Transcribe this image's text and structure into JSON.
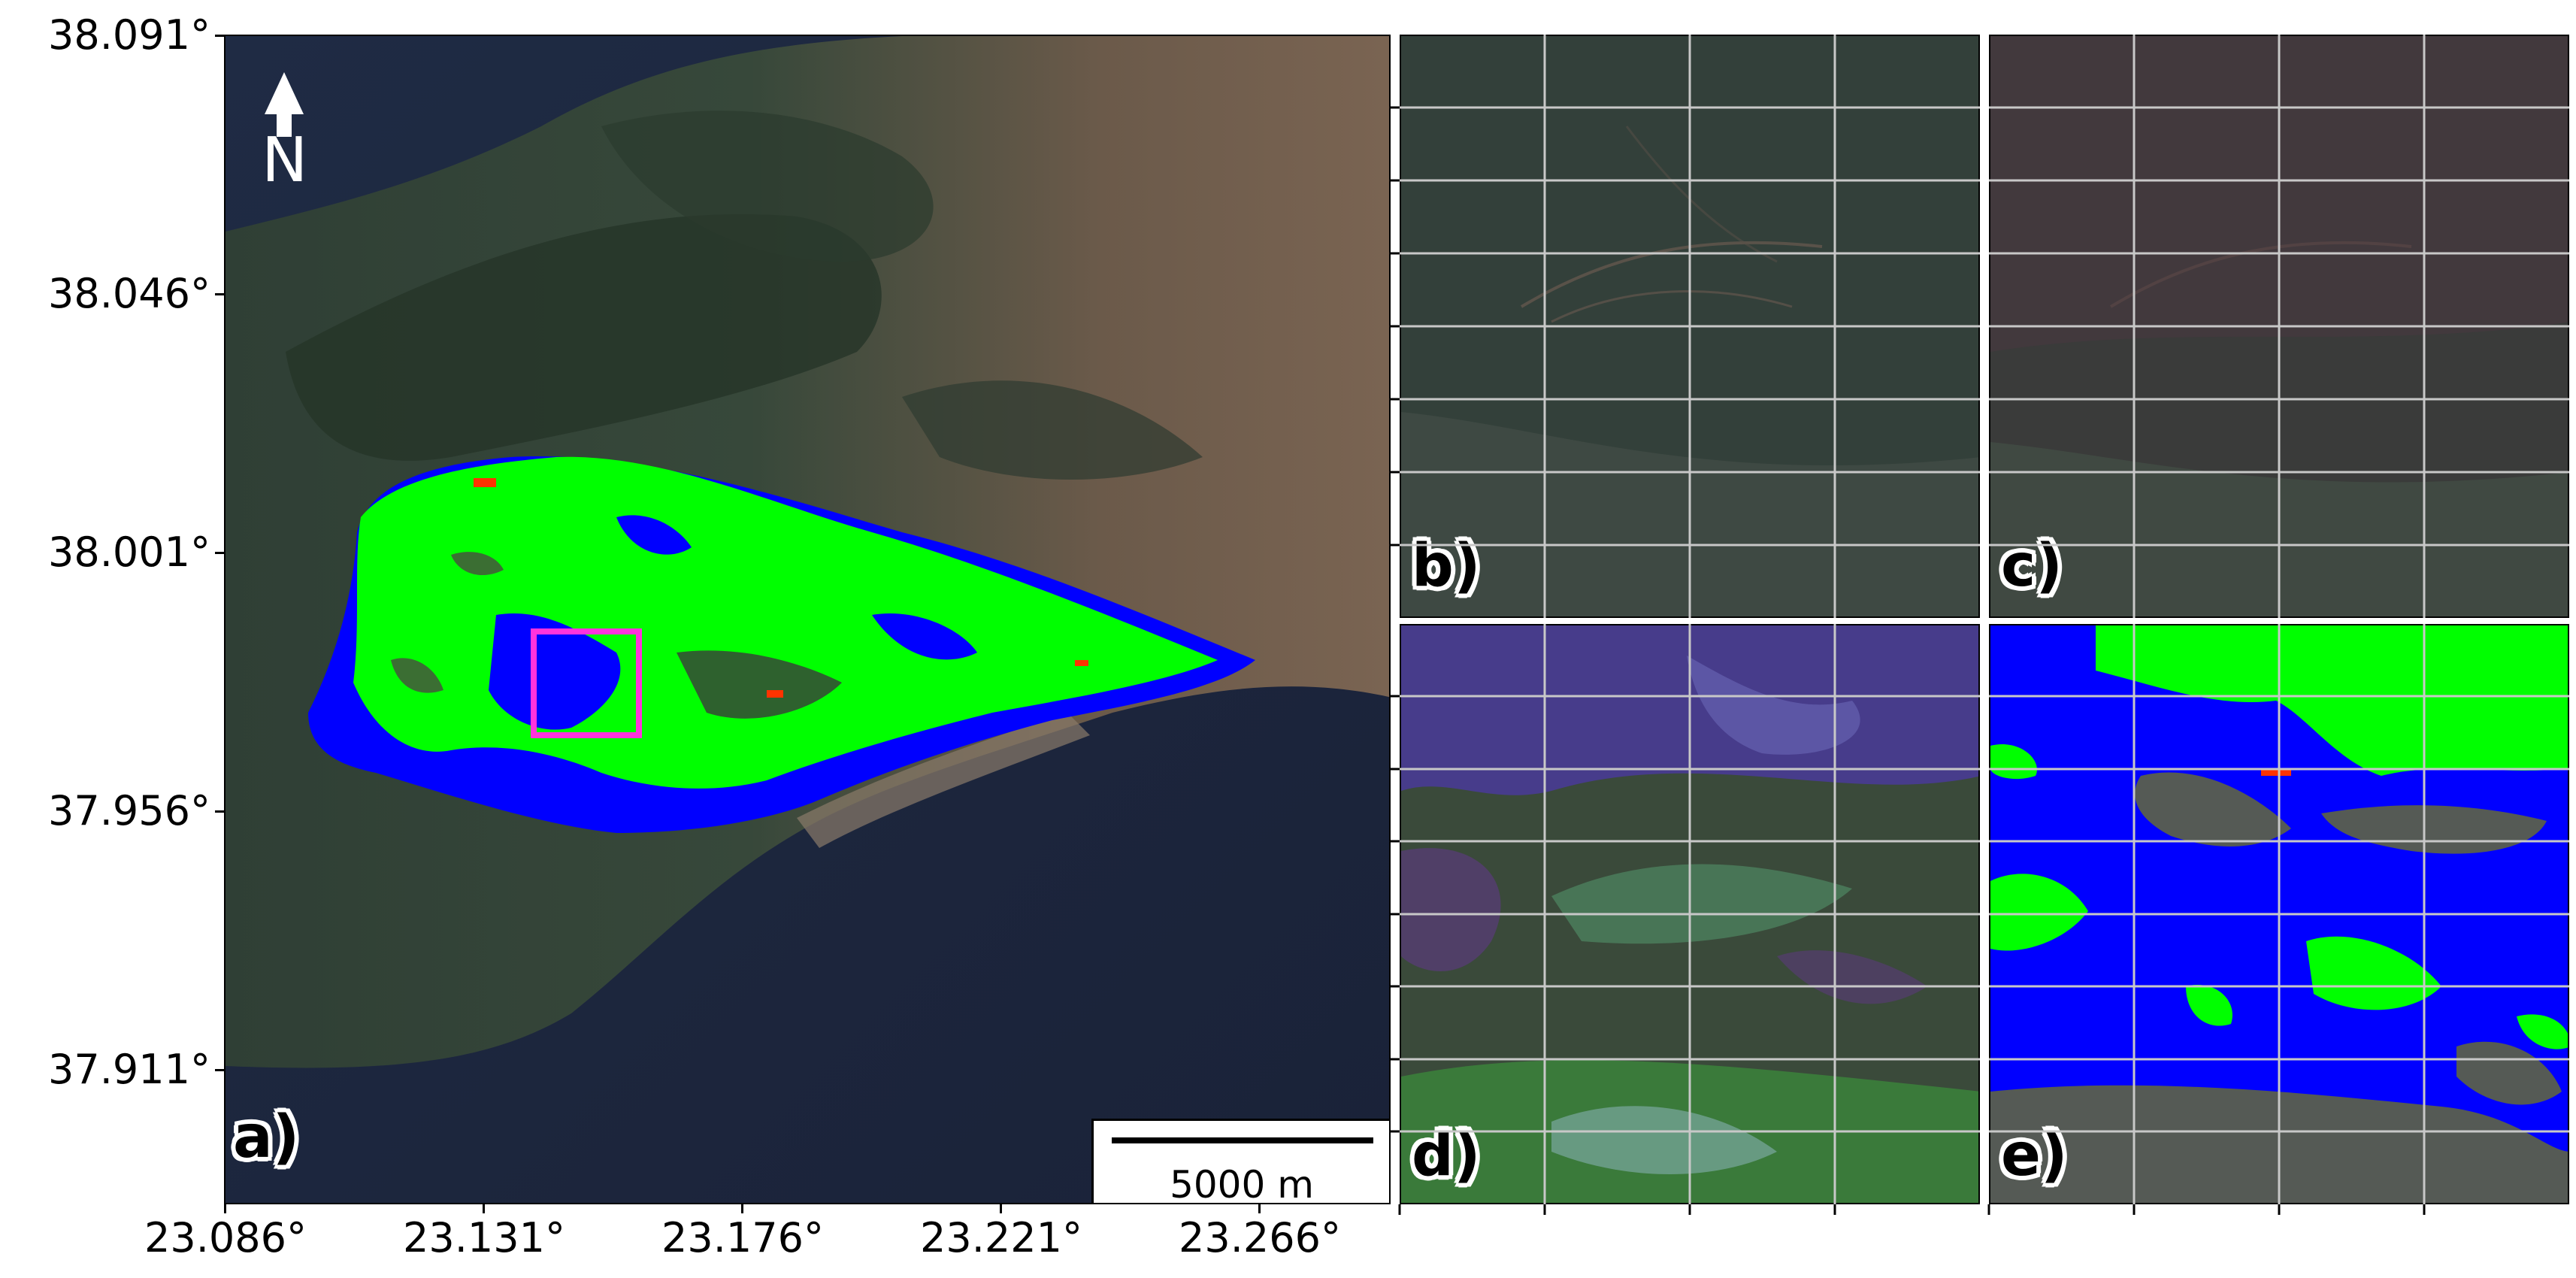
{
  "main_map": {
    "y_ticks": [
      "38.091°",
      "38.046°",
      "38.001°",
      "37.956°",
      "37.911°"
    ],
    "x_ticks": [
      "23.086°",
      "23.131°",
      "23.176°",
      "23.221°",
      "23.266°"
    ],
    "panel_label": "a)",
    "north_arrow_label": "N",
    "scale_bar_label": "5000 m",
    "highlight_box_color": "#ff33dd",
    "class_colors": {
      "burned": "#00ff00",
      "unburned_in_perimeter": "#0000ff",
      "other": "#ff3300"
    }
  },
  "inset_panels": [
    {
      "label": "b)",
      "style": "true-color-pre"
    },
    {
      "label": "c)",
      "style": "true-color-post"
    },
    {
      "label": "d)",
      "style": "false-color"
    },
    {
      "label": "e)",
      "style": "classification"
    }
  ],
  "grid_color": "#c8c8c8"
}
